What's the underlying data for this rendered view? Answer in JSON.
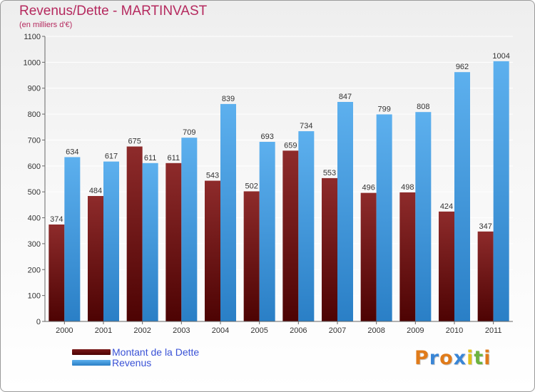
{
  "title": "Revenus/Dette - MARTINVAST",
  "subtitle": "(en milliers d'€)",
  "logo": {
    "text": "Proxiti",
    "letters": [
      "P",
      "r",
      "o",
      "x",
      "i",
      "t",
      "i"
    ],
    "colors": [
      "#e07b1a",
      "#3a86d6",
      "#e07b1a",
      "#3a86d6",
      "#e0c01a",
      "#6cb33f",
      "#e07b1a"
    ]
  },
  "legend": [
    {
      "label": "Montant de la Dette",
      "color": "#5c0a0a"
    },
    {
      "label": "Revenus",
      "color": "#3f9be0"
    }
  ],
  "chart_data": {
    "type": "bar",
    "title": "Revenus/Dette - MARTINVAST",
    "subtitle": "(en milliers d'€)",
    "categories": [
      "2000",
      "2001",
      "2002",
      "2003",
      "2004",
      "2005",
      "2006",
      "2007",
      "2008",
      "2009",
      "2010",
      "2011"
    ],
    "series": [
      {
        "name": "Montant de la Dette",
        "color": "#7a1a1a",
        "values": [
          374,
          484,
          675,
          611,
          543,
          502,
          659,
          553,
          496,
          498,
          424,
          347
        ]
      },
      {
        "name": "Revenus",
        "color": "#4ba3e3",
        "values": [
          634,
          617,
          611,
          709,
          839,
          693,
          734,
          847,
          799,
          808,
          962,
          1004
        ]
      }
    ],
    "ylim": [
      0,
      1100
    ],
    "yticks": [
      0,
      100,
      200,
      300,
      400,
      500,
      600,
      700,
      800,
      900,
      1000,
      1100
    ],
    "grid": true,
    "legend_position": "bottom-left"
  }
}
